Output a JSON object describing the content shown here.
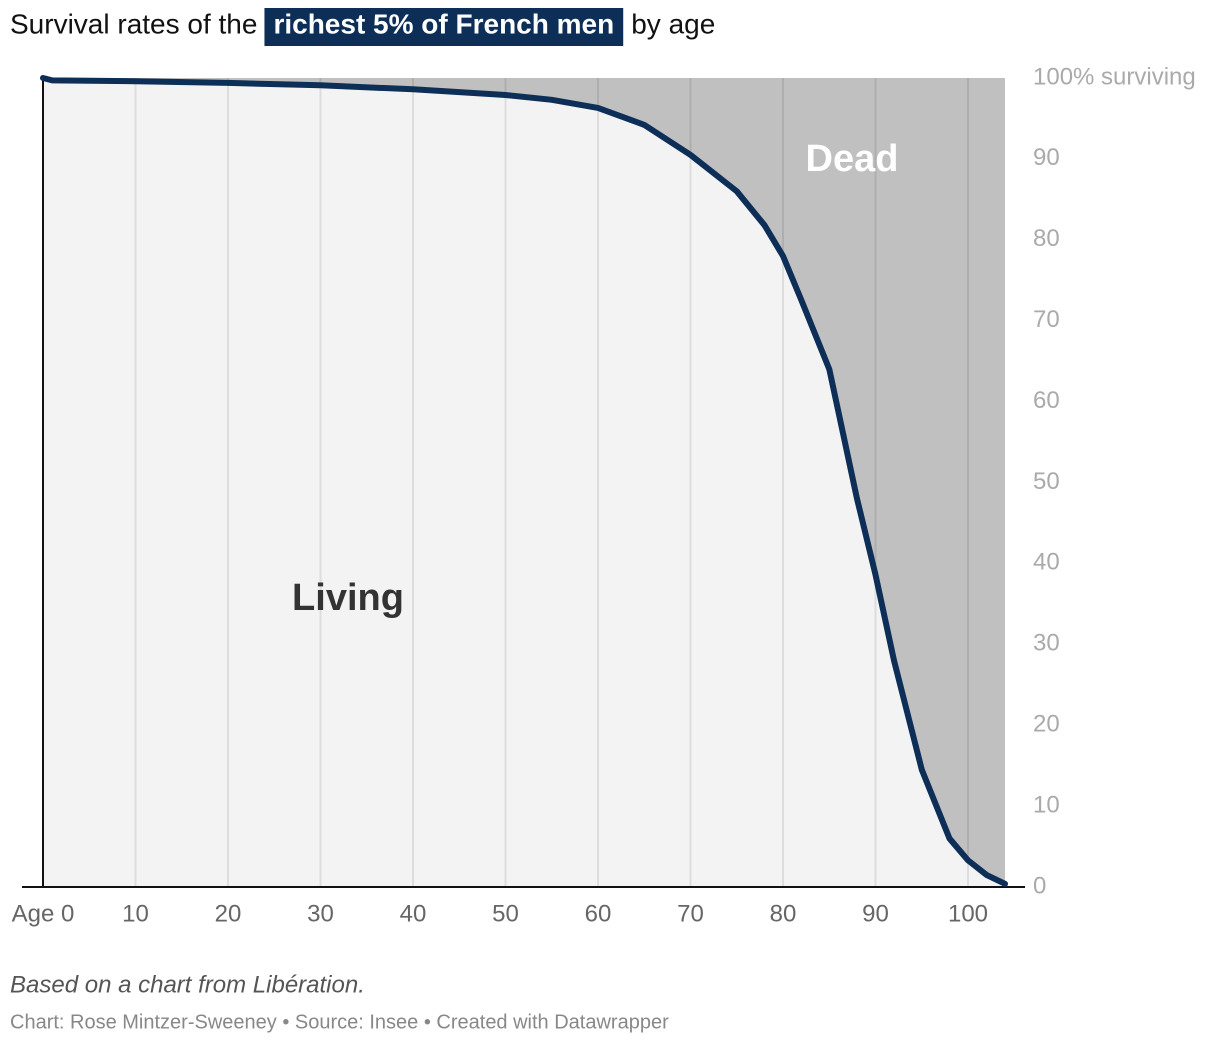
{
  "chart_data": {
    "type": "area",
    "title": {
      "before": "Survival rates of the",
      "highlight": "richest 5% of French men",
      "after": "by age"
    },
    "highlight_color": "#0d2f57",
    "x": [
      0,
      1,
      10,
      20,
      30,
      40,
      50,
      55,
      60,
      65,
      70,
      75,
      78,
      80,
      82,
      85,
      88,
      90,
      92,
      95,
      98,
      100,
      102,
      104
    ],
    "values": [
      100,
      99.7,
      99.6,
      99.4,
      99.1,
      98.6,
      97.9,
      97.3,
      96.3,
      94.2,
      90.5,
      86,
      81.8,
      78,
      72.5,
      64,
      48,
      38.6,
      28,
      14.5,
      6,
      3.3,
      1.5,
      0.4
    ],
    "color": "#0d2f57",
    "living_color": "#f3f3f3",
    "dead_color": "#c0c0c0",
    "xlim": [
      0,
      104
    ],
    "xticks": [
      {
        "value": 0,
        "label": "Age 0"
      },
      10,
      20,
      30,
      40,
      50,
      60,
      70,
      80,
      90,
      100
    ],
    "ylim": [
      0,
      100
    ],
    "yticks": [
      0,
      10,
      20,
      30,
      40,
      50,
      60,
      70,
      80,
      90,
      {
        "value": 100,
        "label": "100% surviving"
      }
    ],
    "grid": true,
    "annotations": [
      "Living",
      "Dead"
    ],
    "note": "Based on a chart from Libération.",
    "credit": "Chart: Rose Mintzer-Sweeney • Source: Insee • Created with Datawrapper"
  }
}
